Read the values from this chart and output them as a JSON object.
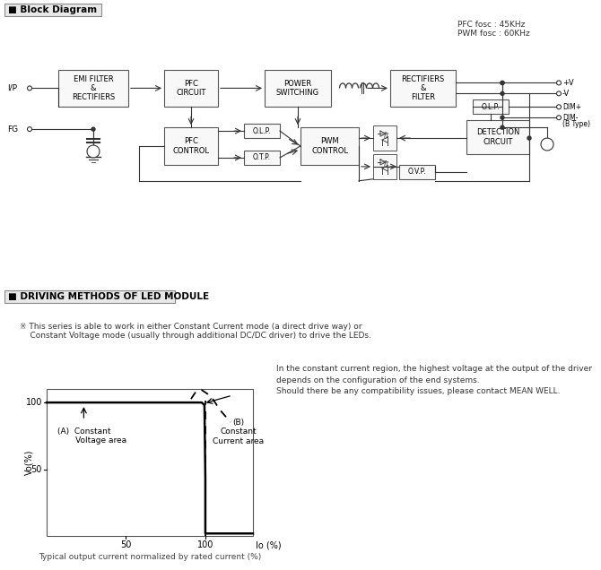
{
  "bg_color": "#ffffff",
  "pfc_text": "PFC fosc : 45KHz\nPWM fosc : 60KHz",
  "note_text": "※ This series is able to work in either Constant Current mode (a direct drive way) or\n    Constant Voltage mode (usually through additional DC/DC driver) to drive the LEDs.",
  "right_text1": "In the constant current region, the highest voltage at the output of the driver\ndepends on the configuration of the end systems.",
  "right_text2": "Should there be any compatibility issues, please contact MEAN WELL.",
  "caption": "Typical output current normalized by rated current (%)",
  "label_A": "(A)  Constant\n       Voltage area",
  "label_B": "(B)\nConstant\nCurrent area",
  "box_edge": "#555555",
  "box_face": "#f8f8f8",
  "line_color": "#333333"
}
